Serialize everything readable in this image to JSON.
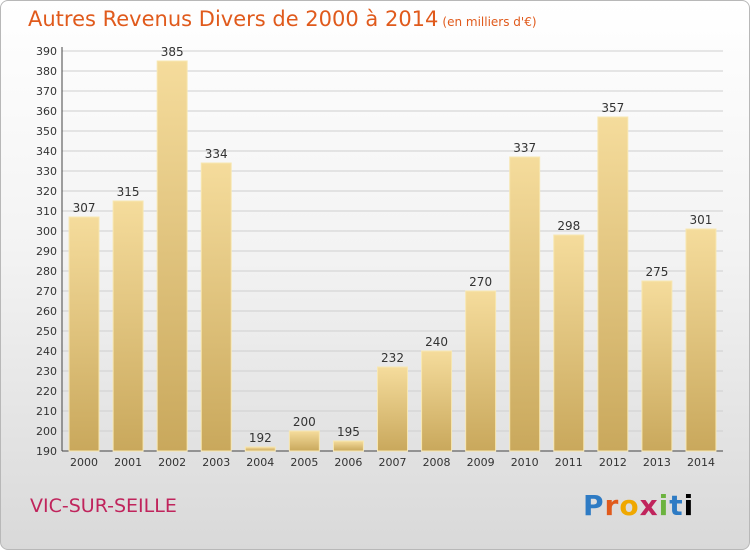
{
  "header": {
    "title": "Autres Revenus Divers de 2000 à 2014",
    "unit": "(en milliers d'€)"
  },
  "footer": {
    "town": "VIC-SUR-SEILLE",
    "logo": [
      "P",
      "r",
      "o",
      "x",
      "i",
      "t",
      "i"
    ]
  },
  "colors": {
    "title": "#e05a1c",
    "town": "#c0245c",
    "bar_light": "#f5dc9c",
    "bar_dark": "#c9a85c"
  },
  "chart_data": {
    "type": "bar",
    "title": "Autres Revenus Divers de 2000 à 2014",
    "xlabel": "",
    "ylabel": "",
    "categories": [
      "2000",
      "2001",
      "2002",
      "2003",
      "2004",
      "2005",
      "2006",
      "2007",
      "2008",
      "2009",
      "2010",
      "2011",
      "2012",
      "2013",
      "2014"
    ],
    "values": [
      307,
      315,
      385,
      334,
      192,
      200,
      195,
      232,
      240,
      270,
      337,
      298,
      357,
      275,
      301
    ],
    "ylim": [
      190,
      390
    ],
    "yticks": [
      "190",
      "200",
      "210",
      "220",
      "230",
      "240",
      "250",
      "260",
      "270",
      "280",
      "290",
      "300",
      "310",
      "320",
      "330",
      "340",
      "350",
      "360",
      "370",
      "380",
      "390"
    ],
    "grid": true,
    "legend": "none"
  }
}
